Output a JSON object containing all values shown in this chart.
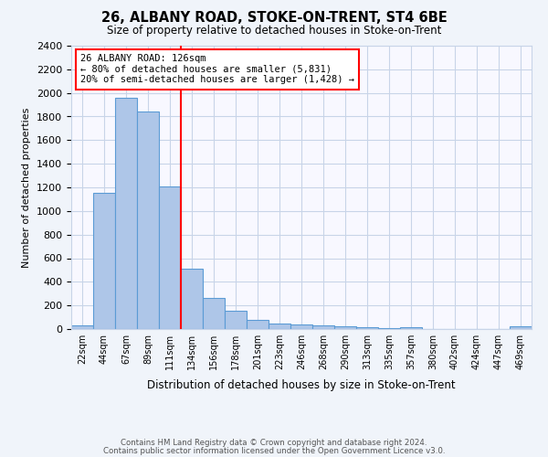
{
  "title": "26, ALBANY ROAD, STOKE-ON-TRENT, ST4 6BE",
  "subtitle": "Size of property relative to detached houses in Stoke-on-Trent",
  "xlabel": "Distribution of detached houses by size in Stoke-on-Trent",
  "ylabel": "Number of detached properties",
  "categories": [
    "22sqm",
    "44sqm",
    "67sqm",
    "89sqm",
    "111sqm",
    "134sqm",
    "156sqm",
    "178sqm",
    "201sqm",
    "223sqm",
    "246sqm",
    "268sqm",
    "290sqm",
    "313sqm",
    "335sqm",
    "357sqm",
    "380sqm",
    "402sqm",
    "424sqm",
    "447sqm",
    "469sqm"
  ],
  "values": [
    30,
    1150,
    1960,
    1840,
    1210,
    510,
    265,
    155,
    80,
    45,
    40,
    30,
    20,
    15,
    10,
    15,
    0,
    0,
    0,
    0,
    20
  ],
  "bar_color": "#aec6e8",
  "bar_edge_color": "#5b9bd5",
  "property_line_x": 4.5,
  "property_line_color": "red",
  "annotation_title": "26 ALBANY ROAD: 126sqm",
  "annotation_line1": "← 80% of detached houses are smaller (5,831)",
  "annotation_line2": "20% of semi-detached houses are larger (1,428) →",
  "annotation_box_color": "red",
  "ylim": [
    0,
    2400
  ],
  "yticks": [
    0,
    200,
    400,
    600,
    800,
    1000,
    1200,
    1400,
    1600,
    1800,
    2000,
    2200,
    2400
  ],
  "footer_line1": "Contains HM Land Registry data © Crown copyright and database right 2024.",
  "footer_line2": "Contains public sector information licensed under the Open Government Licence v3.0.",
  "bg_color": "#f0f4fa",
  "plot_bg_color": "#f8f8ff",
  "grid_color": "#c8d4e8"
}
